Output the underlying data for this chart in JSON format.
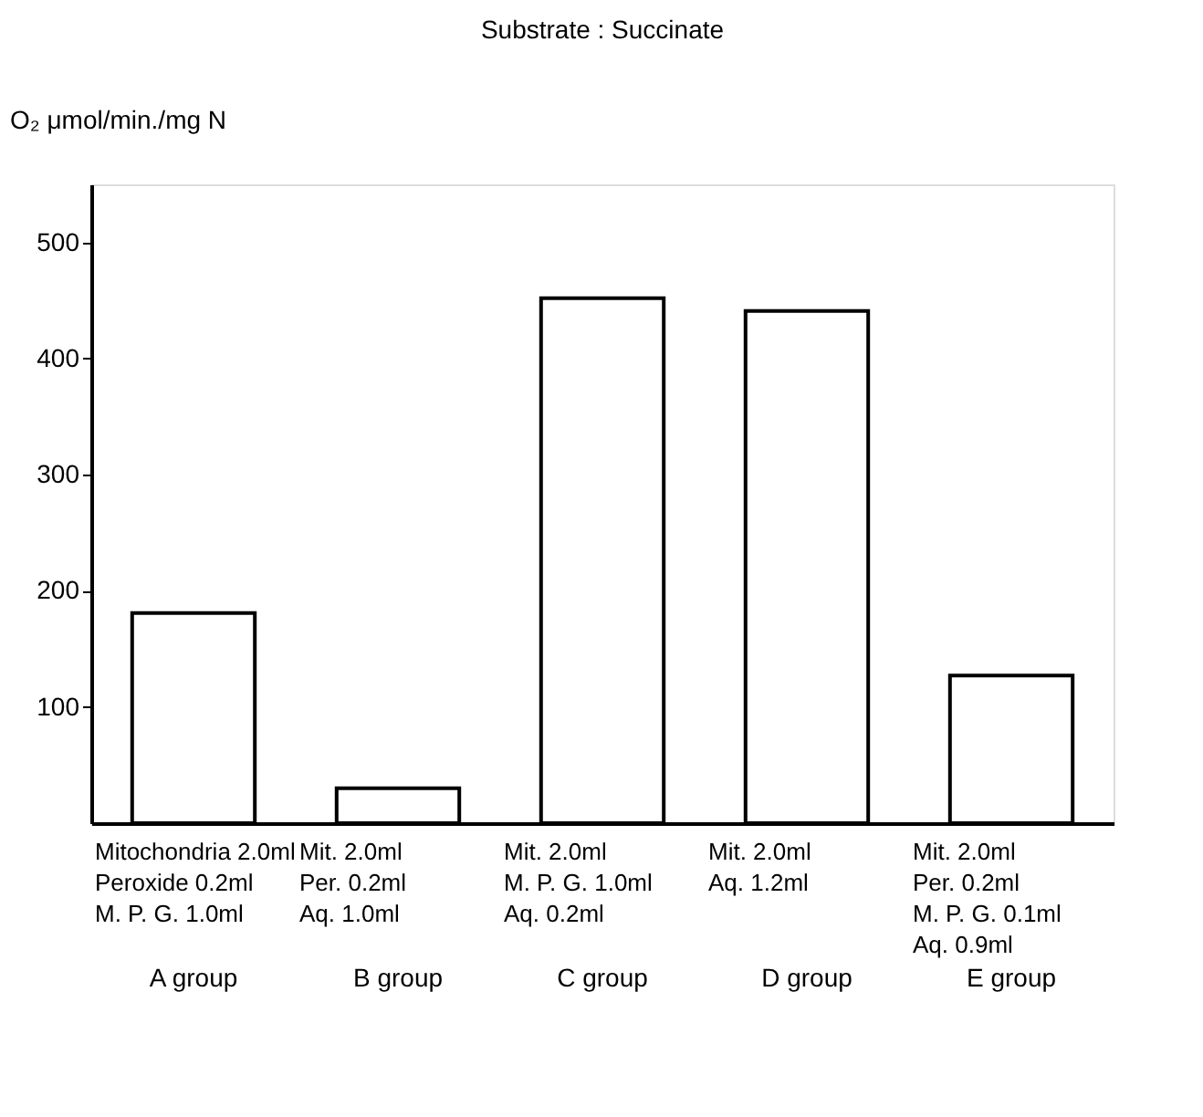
{
  "chart_data": {
    "type": "bar",
    "title": "Substrate : Succinate",
    "ylabel": "O₂ μmol/min./mg N",
    "categories": [
      "A group",
      "B group",
      "C group",
      "D group",
      "E group"
    ],
    "series": [
      {
        "color": "#ffffff",
        "values": [
          181,
          30,
          452,
          441,
          127
        ]
      }
    ],
    "ylim": [
      0,
      550
    ],
    "yticks": [
      100,
      200,
      300,
      400,
      500
    ],
    "grid": false,
    "annotations": [
      "Mitochondria 2.0ml\nPeroxide 0.2ml\nM. P. G. 1.0ml",
      "Mit. 2.0ml\nPer. 0.2ml\n\nAq. 1.0ml",
      "Mit. 2.0ml\n\nM. P. G. 1.0ml\nAq. 0.2ml",
      "Mit. 2.0ml\n\n\nAq. 1.2ml",
      "Mit. 2.0ml\nPer. 0.2ml\nM. P. G. 0.1ml\nAq. 0.9ml"
    ]
  }
}
